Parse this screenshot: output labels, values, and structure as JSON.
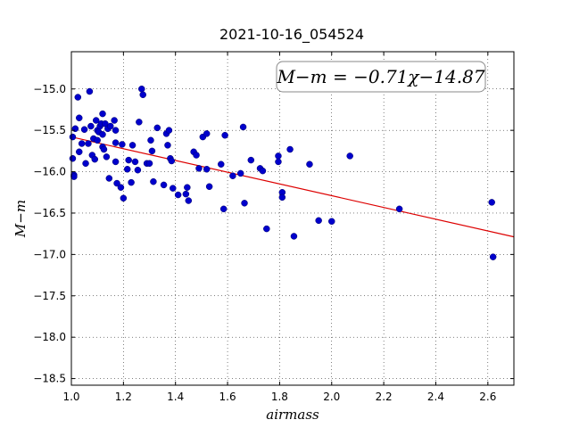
{
  "chart_data": {
    "type": "scatter",
    "title": "2021-10-16_054524",
    "xlabel": "airmass",
    "ylabel": "M−m",
    "xlim": [
      1.0,
      2.7
    ],
    "ylim": [
      -18.58,
      -14.55
    ],
    "y_inverted": true,
    "grid": true,
    "x_ticks": [
      1.0,
      1.2,
      1.4,
      1.6,
      1.8,
      2.0,
      2.2,
      2.4,
      2.6
    ],
    "x_tick_labels": [
      "1.0",
      "1.2",
      "1.4",
      "1.6",
      "1.8",
      "2.0",
      "2.2",
      "2.4",
      "2.6"
    ],
    "y_ticks": [
      -15.0,
      -15.5,
      -16.0,
      -16.5,
      -17.0,
      -17.5,
      -18.0,
      -18.5
    ],
    "y_tick_labels": [
      "−15.0",
      "−15.5",
      "−16.0",
      "−16.5",
      "−17.0",
      "−17.5",
      "−18.0",
      "−18.5"
    ],
    "annotation": "M−m = −0.71χ−14.87",
    "annotation_position": "top-right",
    "fit": {
      "slope": -0.71,
      "intercept": -14.87,
      "color": "#dd0000"
    },
    "point_color": "#0000cc",
    "points": [
      [
        1.005,
        -15.58
      ],
      [
        1.005,
        -15.84
      ],
      [
        1.01,
        -16.04
      ],
      [
        1.01,
        -16.06
      ],
      [
        1.015,
        -15.48
      ],
      [
        1.025,
        -15.1
      ],
      [
        1.03,
        -15.35
      ],
      [
        1.03,
        -15.76
      ],
      [
        1.04,
        -15.66
      ],
      [
        1.05,
        -15.49
      ],
      [
        1.055,
        -15.9
      ],
      [
        1.065,
        -15.66
      ],
      [
        1.07,
        -15.03
      ],
      [
        1.075,
        -15.45
      ],
      [
        1.08,
        -15.8
      ],
      [
        1.085,
        -15.6
      ],
      [
        1.09,
        -15.85
      ],
      [
        1.095,
        -15.38
      ],
      [
        1.1,
        -15.5
      ],
      [
        1.1,
        -15.62
      ],
      [
        1.105,
        -15.52
      ],
      [
        1.11,
        -15.45
      ],
      [
        1.115,
        -15.42
      ],
      [
        1.12,
        -15.3
      ],
      [
        1.12,
        -15.55
      ],
      [
        1.12,
        -15.7
      ],
      [
        1.125,
        -15.73
      ],
      [
        1.13,
        -15.42
      ],
      [
        1.135,
        -15.82
      ],
      [
        1.14,
        -15.48
      ],
      [
        1.145,
        -16.08
      ],
      [
        1.15,
        -15.45
      ],
      [
        1.165,
        -15.38
      ],
      [
        1.17,
        -15.5
      ],
      [
        1.17,
        -15.65
      ],
      [
        1.17,
        -15.88
      ],
      [
        1.175,
        -16.14
      ],
      [
        1.19,
        -16.19
      ],
      [
        1.195,
        -15.67
      ],
      [
        1.2,
        -16.32
      ],
      [
        1.215,
        -15.97
      ],
      [
        1.22,
        -15.86
      ],
      [
        1.23,
        -16.13
      ],
      [
        1.235,
        -15.68
      ],
      [
        1.245,
        -15.88
      ],
      [
        1.255,
        -15.98
      ],
      [
        1.26,
        -15.4
      ],
      [
        1.27,
        -15.0
      ],
      [
        1.275,
        -15.07
      ],
      [
        1.29,
        -15.9
      ],
      [
        1.3,
        -15.9
      ],
      [
        1.305,
        -15.62
      ],
      [
        1.31,
        -15.75
      ],
      [
        1.315,
        -16.12
      ],
      [
        1.33,
        -15.47
      ],
      [
        1.355,
        -16.16
      ],
      [
        1.365,
        -15.54
      ],
      [
        1.37,
        -15.68
      ],
      [
        1.375,
        -15.5
      ],
      [
        1.38,
        -15.84
      ],
      [
        1.385,
        -15.87
      ],
      [
        1.39,
        -16.2
      ],
      [
        1.41,
        -16.28
      ],
      [
        1.44,
        -16.27
      ],
      [
        1.445,
        -16.19
      ],
      [
        1.45,
        -16.35
      ],
      [
        1.47,
        -15.76
      ],
      [
        1.48,
        -15.8
      ],
      [
        1.49,
        -15.96
      ],
      [
        1.505,
        -15.58
      ],
      [
        1.52,
        -15.54
      ],
      [
        1.52,
        -15.97
      ],
      [
        1.53,
        -16.18
      ],
      [
        1.575,
        -15.91
      ],
      [
        1.585,
        -16.45
      ],
      [
        1.59,
        -15.56
      ],
      [
        1.62,
        -16.05
      ],
      [
        1.65,
        -16.02
      ],
      [
        1.66,
        -15.46
      ],
      [
        1.665,
        -16.38
      ],
      [
        1.69,
        -15.86
      ],
      [
        1.725,
        -15.96
      ],
      [
        1.735,
        -15.99
      ],
      [
        1.75,
        -16.69
      ],
      [
        1.795,
        -15.81
      ],
      [
        1.795,
        -15.88
      ],
      [
        1.81,
        -16.25
      ],
      [
        1.81,
        -16.31
      ],
      [
        1.84,
        -15.73
      ],
      [
        1.855,
        -16.78
      ],
      [
        1.915,
        -15.91
      ],
      [
        1.95,
        -16.59
      ],
      [
        2.0,
        -16.6
      ],
      [
        2.07,
        -15.81
      ],
      [
        2.26,
        -16.45
      ],
      [
        2.615,
        -16.37
      ],
      [
        2.62,
        -17.03
      ]
    ]
  }
}
